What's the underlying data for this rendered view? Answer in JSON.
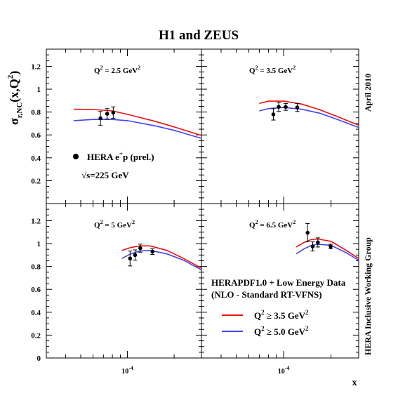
{
  "title": "H1 and ZEUS",
  "ylabel_main": "σ",
  "ylabel_sub": "r,NC",
  "ylabel_tail": "(x,Q",
  "ylabel_sup": "2",
  "ylabel_end": ")",
  "xlabel": "x",
  "right_top_text": "April 2010",
  "right_bottom_text": "HERA Inclusive Working Group",
  "chart_data": {
    "type": "line",
    "x_scale": "log",
    "xlim": [
      3e-05,
      0.0003
    ],
    "ylim": [
      0,
      1.35
    ],
    "x_tick_label": "10",
    "x_tick_exp": "-4",
    "y_ticks": [
      "0",
      "0.2",
      "0.4",
      "0.6",
      "0.8",
      "1",
      "1.2"
    ],
    "data_legend": {
      "label_main": "HERA e",
      "label_sup": "+",
      "label_tail": "p (prel.)",
      "energy_sqrt": "√",
      "energy_text": "s=225 GeV"
    },
    "model_legend": {
      "line1": "HERAPDF1.0 + Low Energy Data",
      "line2": "(NLO - Standard RT-VFNS)",
      "entries": [
        {
          "name_pre": "Q",
          "name_sup": "2",
          "name_post": " ≥ 3.5 GeV",
          "name_sup2": "2",
          "color": "#ee1111"
        },
        {
          "name_pre": "Q",
          "name_sup": "2",
          "name_post": " ≥ 5.0 GeV",
          "name_sup2": "2",
          "color": "#4444ee"
        }
      ]
    },
    "panels": [
      {
        "label_pre": "Q",
        "label_sup": "2",
        "label_post": " = 2.5 GeV",
        "label_sup2": "2",
        "points": [
          {
            "x": 6.7e-05,
            "y": 0.745,
            "err": 0.06
          },
          {
            "x": 7.4e-05,
            "y": 0.785,
            "err": 0.045
          },
          {
            "x": 8.1e-05,
            "y": 0.795,
            "err": 0.05
          }
        ],
        "curves": [
          {
            "name": "Q2 >= 3.5 GeV2",
            "color": "#ee1111",
            "points": [
              [
                4.5e-05,
                0.825
              ],
              [
                6e-05,
                0.822
              ],
              [
                8e-05,
                0.81
              ],
              [
                0.0001,
                0.78
              ],
              [
                0.00015,
                0.72
              ],
              [
                0.0002,
                0.67
              ],
              [
                0.0003,
                0.595
              ]
            ]
          },
          {
            "name": "Q2 >= 5.0 GeV2",
            "color": "#4444ee",
            "points": [
              [
                4.5e-05,
                0.725
              ],
              [
                6e-05,
                0.735
              ],
              [
                8e-05,
                0.735
              ],
              [
                0.0001,
                0.725
              ],
              [
                0.00015,
                0.68
              ],
              [
                0.0002,
                0.64
              ],
              [
                0.0003,
                0.57
              ]
            ]
          }
        ]
      },
      {
        "label_pre": "Q",
        "label_sup": "2",
        "label_post": " = 3.5 GeV",
        "label_sup2": "2",
        "points": [
          {
            "x": 8.6e-05,
            "y": 0.78,
            "err": 0.05
          },
          {
            "x": 9.3e-05,
            "y": 0.845,
            "err": 0.04
          },
          {
            "x": 0.000103,
            "y": 0.845,
            "err": 0.03
          },
          {
            "x": 0.000122,
            "y": 0.84,
            "err": 0.035
          }
        ],
        "curves": [
          {
            "name": "Q2 >= 3.5 GeV2",
            "color": "#ee1111",
            "points": [
              [
                7e-05,
                0.875
              ],
              [
                8e-05,
                0.895
              ],
              [
                0.0001,
                0.895
              ],
              [
                0.00013,
                0.87
              ],
              [
                0.00017,
                0.82
              ],
              [
                0.00022,
                0.76
              ],
              [
                0.0003,
                0.685
              ]
            ]
          },
          {
            "name": "Q2 >= 5.0 GeV2",
            "color": "#4444ee",
            "points": [
              [
                7e-05,
                0.81
              ],
              [
                8e-05,
                0.83
              ],
              [
                0.0001,
                0.84
              ],
              [
                0.00013,
                0.825
              ],
              [
                0.00017,
                0.79
              ],
              [
                0.00022,
                0.735
              ],
              [
                0.0003,
                0.665
              ]
            ]
          }
        ]
      },
      {
        "label_pre": "Q",
        "label_sup": "2",
        "label_post": " = 5 GeV",
        "label_sup2": "2",
        "points": [
          {
            "x": 0.000104,
            "y": 0.87,
            "err": 0.065
          },
          {
            "x": 0.000112,
            "y": 0.9,
            "err": 0.045
          },
          {
            "x": 0.000121,
            "y": 0.96,
            "err": 0.035
          },
          {
            "x": 0.000145,
            "y": 0.93,
            "err": 0.025
          }
        ],
        "curves": [
          {
            "name": "Q2 >= 3.5 GeV2",
            "color": "#ee1111",
            "points": [
              [
                9.2e-05,
                0.94
              ],
              [
                0.000105,
                0.965
              ],
              [
                0.00012,
                0.98
              ],
              [
                0.00014,
                0.98
              ],
              [
                0.00018,
                0.94
              ],
              [
                0.00023,
                0.87
              ],
              [
                0.0003,
                0.785
              ]
            ]
          },
          {
            "name": "Q2 >= 5.0 GeV2",
            "color": "#4444ee",
            "points": [
              [
                9.2e-05,
                0.87
              ],
              [
                0.000105,
                0.91
              ],
              [
                0.00012,
                0.935
              ],
              [
                0.00014,
                0.94
              ],
              [
                0.00018,
                0.91
              ],
              [
                0.00023,
                0.855
              ],
              [
                0.0003,
                0.77
              ]
            ]
          }
        ]
      },
      {
        "label_pre": "Q",
        "label_sup": "2",
        "label_post": " = 6.5 GeV",
        "label_sup2": "2",
        "points": [
          {
            "x": 0.000142,
            "y": 1.095,
            "err": 0.08
          },
          {
            "x": 0.000153,
            "y": 0.975,
            "err": 0.04
          },
          {
            "x": 0.000165,
            "y": 1.01,
            "err": 0.04
          },
          {
            "x": 0.000199,
            "y": 0.975,
            "err": 0.02
          }
        ],
        "curves": [
          {
            "name": "Q2 >= 3.5 GeV2",
            "color": "#ee1111",
            "points": [
              [
                0.00012,
                0.97
              ],
              [
                0.000135,
                1.01
              ],
              [
                0.00015,
                1.035
              ],
              [
                0.000165,
                1.04
              ],
              [
                0.0002,
                1.02
              ],
              [
                0.00025,
                0.94
              ],
              [
                0.0003,
                0.87
              ]
            ]
          },
          {
            "name": "Q2 >= 5.0 GeV2",
            "color": "#4444ee",
            "points": [
              [
                0.00012,
                0.91
              ],
              [
                0.000135,
                0.955
              ],
              [
                0.00015,
                0.985
              ],
              [
                0.000165,
                0.995
              ],
              [
                0.0002,
                0.985
              ],
              [
                0.00025,
                0.92
              ],
              [
                0.0003,
                0.855
              ]
            ]
          }
        ]
      }
    ]
  }
}
